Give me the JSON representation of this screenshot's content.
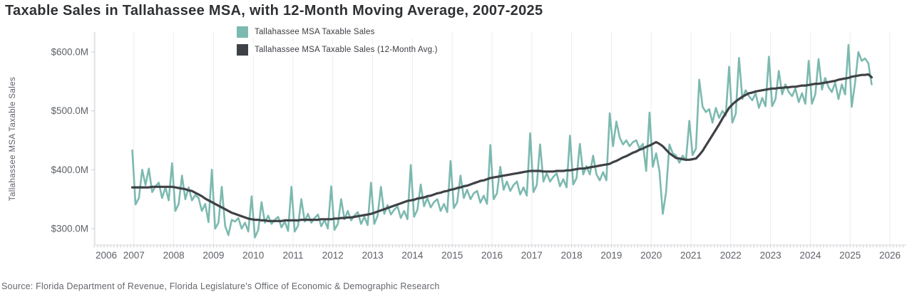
{
  "title": "Taxable Sales in Tallahassee MSA, with 12-Month Moving Average, 2007-2025",
  "source": "Source: Florida Department of Revenue, Florida Legislature's Office of Economic & Demographic Research",
  "colors": {
    "series_main": "#7cb9b0",
    "series_avg": "#3e4146",
    "grid": "#ededed",
    "axis_line": "#d7d9dc",
    "tick": "#c9ccd1",
    "axis_text": "#5d6168"
  },
  "legend": [
    {
      "label": "Tallahassee MSA Taxable Sales",
      "color": "#7cb9b0"
    },
    {
      "label": "Tallahassee MSA Taxable Sales (12-Month Avg.)",
      "color": "#3e4146"
    }
  ],
  "y_axis": {
    "title": "Tallahassee MSA Taxable Sales",
    "tick_values": [
      300,
      400,
      500,
      600
    ],
    "tick_labels": [
      "$300.0M",
      "$400.0M",
      "$500.0M",
      "$600.0M"
    ]
  },
  "x_axis": {
    "tick_labels": [
      "2006",
      "2007",
      "2008",
      "2009",
      "2010",
      "2011",
      "2012",
      "2013",
      "2014",
      "2015",
      "2016",
      "2017",
      "2018",
      "2019",
      "2020",
      "2021",
      "2022",
      "2023",
      "2024",
      "2025",
      "2026"
    ]
  },
  "chart_data": {
    "type": "line",
    "title": "Taxable Sales in Tallahassee MSA, with 12-Month Moving Average, 2007-2025",
    "xlabel": "",
    "ylabel": "Tallahassee MSA Taxable Sales",
    "units": "millions of dollars",
    "x_start": "2006-12",
    "x_frequency": "monthly",
    "x_axis_range_years": [
      2006,
      2026
    ],
    "ylim": [
      272,
      634
    ],
    "grid": "vertical-yearly",
    "legend_position": "top-center",
    "series": [
      {
        "name": "Tallahassee MSA Taxable Sales",
        "color": "#7cb9b0",
        "values": [
          433,
          341,
          352,
          400,
          374,
          402,
          362,
          372,
          378,
          352,
          370,
          348,
          411,
          330,
          342,
          390,
          350,
          370,
          348,
          357,
          352,
          330,
          342,
          311,
          400,
          300,
          310,
          371,
          305,
          289,
          315,
          312,
          318,
          300,
          310,
          295,
          355,
          285,
          298,
          345,
          310,
          322,
          308,
          315,
          320,
          302,
          312,
          296,
          371,
          295,
          305,
          350,
          312,
          325,
          310,
          318,
          324,
          304,
          315,
          300,
          372,
          298,
          308,
          350,
          316,
          330,
          314,
          322,
          328,
          308,
          320,
          306,
          378,
          308,
          322,
          371,
          325,
          340,
          324,
          332,
          338,
          318,
          330,
          316,
          408,
          320,
          332,
          375,
          338,
          352,
          336,
          345,
          350,
          330,
          342,
          328,
          415,
          335,
          345,
          390,
          352,
          366,
          350,
          360,
          364,
          344,
          356,
          342,
          442,
          350,
          360,
          405,
          366,
          380,
          364,
          374,
          380,
          358,
          370,
          356,
          462,
          362,
          374,
          443,
          380,
          394,
          380,
          388,
          394,
          372,
          384,
          370,
          458,
          375,
          386,
          444,
          392,
          406,
          392,
          424,
          392,
          382,
          396,
          382,
          496,
          440,
          482,
          455,
          443,
          450,
          440,
          447,
          450,
          436,
          444,
          398,
          497,
          405,
          428,
          398,
          325,
          362,
          443,
          428,
          424,
          412,
          424,
          416,
          483,
          425,
          436,
          553,
          507,
          498,
          503,
          480,
          505,
          488,
          500,
          492,
          575,
          480,
          495,
          590,
          520,
          535,
          525,
          518,
          530,
          505,
          522,
          508,
          592,
          508,
          520,
          568,
          528,
          545,
          532,
          525,
          538,
          515,
          530,
          512,
          585,
          512,
          528,
          588,
          536,
          556,
          540,
          532,
          548,
          520,
          545,
          528,
          612,
          507,
          548,
          600,
          585,
          589,
          581,
          545
        ]
      },
      {
        "name": "Tallahassee MSA Taxable Sales (12-Month Avg.)",
        "color": "#3e4146",
        "values": [
          370,
          370,
          370,
          370,
          370,
          370,
          371,
          371,
          371,
          371,
          371,
          371,
          371,
          370,
          369,
          368,
          367,
          365,
          364,
          361,
          358,
          355,
          351,
          348,
          345,
          342,
          339,
          336,
          333,
          330,
          327,
          325,
          323,
          321,
          319,
          317,
          316,
          315,
          315,
          314,
          314,
          313,
          313,
          313,
          313,
          313,
          314,
          314,
          314,
          314,
          314,
          315,
          315,
          315,
          315,
          315,
          315,
          316,
          316,
          316,
          316,
          317,
          317,
          318,
          318,
          319,
          319,
          320,
          321,
          322,
          323,
          324,
          325,
          327,
          329,
          331,
          333,
          335,
          337,
          339,
          341,
          343,
          345,
          347,
          348,
          349,
          351,
          352,
          353,
          355,
          356,
          358,
          360,
          361,
          363,
          364,
          366,
          367,
          369,
          370,
          372,
          373,
          375,
          377,
          379,
          381,
          382,
          384,
          386,
          387,
          388,
          389,
          390,
          391,
          392,
          393,
          394,
          395,
          396,
          397,
          398,
          398,
          398,
          398,
          397,
          397,
          397,
          397,
          398,
          398,
          398,
          399,
          399,
          400,
          401,
          402,
          402,
          403,
          404,
          405,
          406,
          407,
          408,
          409,
          410,
          413,
          415,
          418,
          421,
          423,
          426,
          429,
          431,
          434,
          436,
          439,
          441,
          444,
          447,
          444,
          440,
          434,
          428,
          424,
          420,
          419,
          418,
          417,
          417,
          418,
          419,
          425,
          432,
          441,
          450,
          459,
          468,
          477,
          487,
          496,
          505,
          511,
          516,
          520,
          524,
          527,
          530,
          531,
          533,
          534,
          535,
          536,
          537,
          538,
          538,
          539,
          539,
          540,
          540,
          541,
          541,
          542,
          543,
          543,
          544,
          545,
          546,
          546,
          547,
          548,
          549,
          550,
          551,
          553,
          554,
          555,
          556,
          558,
          559,
          560,
          561,
          561,
          562,
          557
        ]
      }
    ]
  }
}
